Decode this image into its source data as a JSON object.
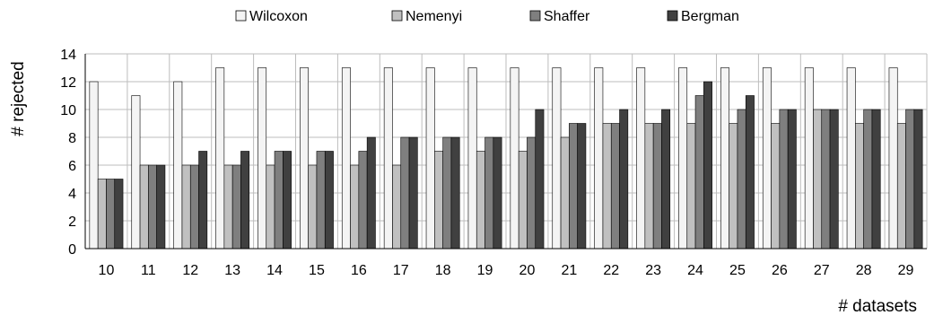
{
  "chart_data": {
    "type": "bar",
    "xlabel": "# datasets",
    "ylabel": "# rejected",
    "ylim": [
      0,
      14
    ],
    "yticks": [
      0,
      2,
      4,
      6,
      8,
      10,
      12,
      14
    ],
    "grid": true,
    "legend_position": "top",
    "categories": [
      "10",
      "11",
      "12",
      "13",
      "14",
      "15",
      "16",
      "17",
      "18",
      "19",
      "20",
      "21",
      "22",
      "23",
      "24",
      "25",
      "26",
      "27",
      "28",
      "29"
    ],
    "series": [
      {
        "name": "Wilcoxon",
        "color": "#f4f4f4",
        "values": [
          12,
          11,
          12,
          13,
          13,
          13,
          13,
          13,
          13,
          13,
          13,
          13,
          13,
          13,
          13,
          13,
          13,
          13,
          13,
          13
        ]
      },
      {
        "name": "Nemenyi",
        "color": "#c0c0c0",
        "values": [
          5,
          6,
          6,
          6,
          6,
          6,
          6,
          6,
          7,
          7,
          7,
          8,
          9,
          9,
          9,
          9,
          9,
          10,
          9,
          9
        ]
      },
      {
        "name": "Shaffer",
        "color": "#7f7f7f",
        "values": [
          5,
          6,
          6,
          6,
          7,
          7,
          7,
          8,
          8,
          8,
          8,
          9,
          9,
          9,
          11,
          10,
          10,
          10,
          10,
          10
        ]
      },
      {
        "name": "Bergman",
        "color": "#404040",
        "values": [
          5,
          6,
          7,
          7,
          7,
          7,
          8,
          8,
          8,
          8,
          10,
          9,
          10,
          10,
          12,
          11,
          10,
          10,
          10,
          10
        ]
      }
    ]
  }
}
